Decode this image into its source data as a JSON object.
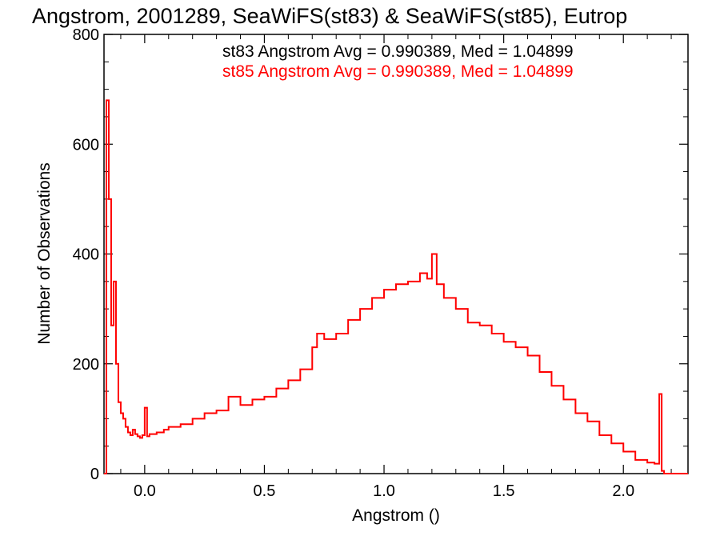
{
  "chart_data": {
    "type": "histogram",
    "title": "Angstrom, 2001289, SeaWiFS(st83) & SeaWiFS(st85), Eutrop",
    "xlabel": "Angstrom ()",
    "ylabel": "Number of Observations",
    "xlim": [
      -0.17,
      2.27
    ],
    "ylim": [
      0,
      800
    ],
    "xticks": [
      0.0,
      0.5,
      1.0,
      1.5,
      2.0
    ],
    "xtick_labels": [
      "0.0",
      "0.5",
      "1.0",
      "1.5",
      "2.0"
    ],
    "yticks": [
      0,
      200,
      400,
      600,
      800
    ],
    "ytick_labels": [
      "0",
      "200",
      "400",
      "600",
      "800"
    ],
    "grid": false,
    "annotations": [
      {
        "text": "st83 Angstrom Avg = 0.990389, Med = 1.04899",
        "color": "#000000"
      },
      {
        "text": "st85 Angstrom Avg = 0.990389, Med = 1.04899",
        "color": "#ff0000"
      }
    ],
    "series": [
      {
        "color": "#ff0000",
        "points": [
          [
            -0.17,
            0
          ],
          [
            -0.16,
            680
          ],
          [
            -0.15,
            500
          ],
          [
            -0.14,
            270
          ],
          [
            -0.13,
            350
          ],
          [
            -0.12,
            200
          ],
          [
            -0.11,
            130
          ],
          [
            -0.1,
            110
          ],
          [
            -0.09,
            100
          ],
          [
            -0.08,
            85
          ],
          [
            -0.07,
            75
          ],
          [
            -0.06,
            70
          ],
          [
            -0.05,
            80
          ],
          [
            -0.04,
            72
          ],
          [
            -0.03,
            68
          ],
          [
            -0.02,
            65
          ],
          [
            -0.01,
            70
          ],
          [
            0.0,
            120
          ],
          [
            0.01,
            68
          ],
          [
            0.02,
            72
          ],
          [
            0.05,
            75
          ],
          [
            0.08,
            80
          ],
          [
            0.1,
            85
          ],
          [
            0.15,
            90
          ],
          [
            0.2,
            100
          ],
          [
            0.25,
            110
          ],
          [
            0.3,
            115
          ],
          [
            0.35,
            140
          ],
          [
            0.4,
            125
          ],
          [
            0.45,
            135
          ],
          [
            0.5,
            140
          ],
          [
            0.55,
            155
          ],
          [
            0.6,
            170
          ],
          [
            0.65,
            190
          ],
          [
            0.7,
            230
          ],
          [
            0.72,
            255
          ],
          [
            0.75,
            245
          ],
          [
            0.8,
            255
          ],
          [
            0.85,
            280
          ],
          [
            0.9,
            300
          ],
          [
            0.95,
            320
          ],
          [
            1.0,
            335
          ],
          [
            1.05,
            345
          ],
          [
            1.1,
            350
          ],
          [
            1.15,
            365
          ],
          [
            1.18,
            355
          ],
          [
            1.2,
            400
          ],
          [
            1.22,
            345
          ],
          [
            1.25,
            320
          ],
          [
            1.3,
            300
          ],
          [
            1.35,
            275
          ],
          [
            1.4,
            270
          ],
          [
            1.45,
            255
          ],
          [
            1.5,
            240
          ],
          [
            1.55,
            230
          ],
          [
            1.6,
            215
          ],
          [
            1.65,
            185
          ],
          [
            1.7,
            160
          ],
          [
            1.75,
            135
          ],
          [
            1.8,
            110
          ],
          [
            1.85,
            95
          ],
          [
            1.9,
            70
          ],
          [
            1.95,
            55
          ],
          [
            2.0,
            40
          ],
          [
            2.05,
            25
          ],
          [
            2.1,
            20
          ],
          [
            2.13,
            18
          ],
          [
            2.15,
            145
          ],
          [
            2.16,
            5
          ],
          [
            2.17,
            0
          ],
          [
            2.27,
            0
          ]
        ]
      }
    ]
  }
}
